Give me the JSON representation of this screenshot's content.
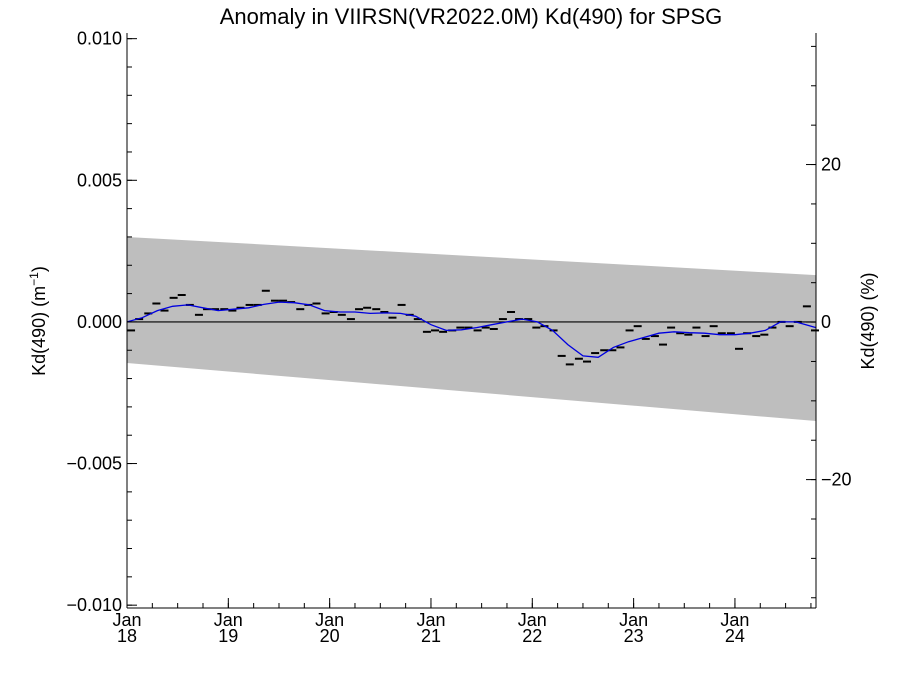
{
  "chart_data": {
    "type": "scatter",
    "title": "Anomaly in VIIRSN(VR2022.0M) Kd(490) for SPSG",
    "ylabel_left": "Kd(490) (m",
    "ylabel_left_sup": "−1",
    "ylabel_left_close": ")",
    "ylabel_right": "Kd(490) (%)",
    "ylim": [
      -0.0101,
      0.0102
    ],
    "y2lim": [
      -36.3,
      36.7
    ],
    "xlim": [
      2018.0,
      2024.8
    ],
    "grid": false,
    "y_ticks": [
      {
        "value": -0.01,
        "label": "−0.010"
      },
      {
        "value": -0.005,
        "label": "−0.005"
      },
      {
        "value": 0.0,
        "label": "0.000"
      },
      {
        "value": 0.005,
        "label": "0.005"
      },
      {
        "value": 0.01,
        "label": "0.010"
      }
    ],
    "y2_ticks": [
      {
        "value": -20,
        "label": "−20"
      },
      {
        "value": 0,
        "label": "0"
      },
      {
        "value": 20,
        "label": "20"
      }
    ],
    "x_ticks": [
      {
        "value": 2018.0,
        "month": "Jan",
        "year": "18"
      },
      {
        "value": 2019.0,
        "month": "Jan",
        "year": "19"
      },
      {
        "value": 2020.0,
        "month": "Jan",
        "year": "20"
      },
      {
        "value": 2021.0,
        "month": "Jan",
        "year": "21"
      },
      {
        "value": 2022.0,
        "month": "Jan",
        "year": "22"
      },
      {
        "value": 2023.0,
        "month": "Jan",
        "year": "23"
      },
      {
        "value": 2024.0,
        "month": "Jan",
        "year": "24"
      }
    ],
    "band": {
      "x": [
        2018.0,
        2024.8
      ],
      "upper": [
        0.003,
        0.00165
      ],
      "lower": [
        -0.00145,
        -0.0035
      ],
      "color": "#bebebe"
    },
    "zero_line": 0.0,
    "series": [
      {
        "kind": "points",
        "color": "#000000",
        "x": [
          2018.04,
          2018.12,
          2018.21,
          2018.29,
          2018.37,
          2018.46,
          2018.54,
          2018.62,
          2018.71,
          2018.79,
          2018.87,
          2018.96,
          2019.04,
          2019.12,
          2019.21,
          2019.29,
          2019.37,
          2019.46,
          2019.54,
          2019.62,
          2019.71,
          2019.79,
          2019.87,
          2019.96,
          2020.04,
          2020.12,
          2020.21,
          2020.29,
          2020.37,
          2020.46,
          2020.54,
          2020.62,
          2020.71,
          2020.79,
          2020.87,
          2020.96,
          2021.04,
          2021.12,
          2021.21,
          2021.29,
          2021.37,
          2021.46,
          2021.54,
          2021.62,
          2021.71,
          2021.79,
          2021.87,
          2021.96,
          2022.04,
          2022.12,
          2022.21,
          2022.29,
          2022.37,
          2022.46,
          2022.54,
          2022.62,
          2022.71,
          2022.79,
          2022.87,
          2022.96,
          2023.04,
          2023.12,
          2023.21,
          2023.29,
          2023.37,
          2023.46,
          2023.54,
          2023.62,
          2023.71,
          2023.79,
          2023.87,
          2023.96,
          2024.04,
          2024.12,
          2024.21,
          2024.29,
          2024.37,
          2024.46,
          2024.54,
          2024.62,
          2024.71,
          2024.79
        ],
        "y": [
          -0.0003,
          0.0001,
          0.0003,
          0.00065,
          0.0004,
          0.00085,
          0.00095,
          0.0006,
          0.00025,
          0.00045,
          0.00045,
          0.00045,
          0.0004,
          0.0005,
          0.0006,
          0.0006,
          0.0011,
          0.00075,
          0.00075,
          0.0007,
          0.00045,
          0.0006,
          0.00065,
          0.0003,
          0.00035,
          0.00025,
          0.0001,
          0.00045,
          0.0005,
          0.00045,
          0.00035,
          0.00015,
          0.0006,
          0.00025,
          0.0001,
          -0.00035,
          -0.0003,
          -0.00035,
          -0.0003,
          -0.0002,
          -0.0002,
          -0.0003,
          -0.0002,
          -0.00025,
          0.0001,
          0.00035,
          0.0001,
          0.0001,
          -0.0002,
          -0.00015,
          -0.0003,
          -0.0012,
          -0.0015,
          -0.0013,
          -0.0014,
          -0.0011,
          -0.001,
          -0.001,
          -0.0009,
          -0.0003,
          -0.00015,
          -0.0006,
          -0.0005,
          -0.0008,
          -0.0002,
          -0.0004,
          -0.00045,
          -0.0002,
          -0.0005,
          -0.00015,
          -0.0004,
          -0.0004,
          -0.00095,
          -0.0004,
          -0.0005,
          -0.00045,
          -0.0002,
          0.0,
          -0.00015,
          0.0,
          0.00055,
          -0.0003
        ]
      },
      {
        "kind": "line",
        "color": "#0000e0",
        "x": [
          2018.0,
          2018.15,
          2018.3,
          2018.45,
          2018.6,
          2018.75,
          2018.9,
          2019.05,
          2019.2,
          2019.35,
          2019.5,
          2019.65,
          2019.8,
          2019.95,
          2020.1,
          2020.25,
          2020.4,
          2020.55,
          2020.7,
          2020.85,
          2021.0,
          2021.15,
          2021.3,
          2021.45,
          2021.6,
          2021.75,
          2021.9,
          2022.05,
          2022.2,
          2022.35,
          2022.5,
          2022.65,
          2022.8,
          2022.95,
          2023.1,
          2023.25,
          2023.4,
          2023.55,
          2023.7,
          2023.85,
          2024.0,
          2024.15,
          2024.3,
          2024.45,
          2024.6,
          2024.7,
          2024.8
        ],
        "y": [
          0.0,
          0.00015,
          0.0004,
          0.00055,
          0.0006,
          0.0005,
          0.0004,
          0.00045,
          0.0005,
          0.00062,
          0.0007,
          0.00068,
          0.0006,
          0.0004,
          0.00035,
          0.00035,
          0.0003,
          0.00032,
          0.0003,
          0.0002,
          -0.0001,
          -0.0003,
          -0.00028,
          -0.0002,
          -0.0001,
          0.0,
          0.0001,
          0.0,
          -0.0003,
          -0.0008,
          -0.0012,
          -0.00125,
          -0.0009,
          -0.0007,
          -0.00055,
          -0.0004,
          -0.00035,
          -0.00038,
          -0.0004,
          -0.00045,
          -0.00045,
          -0.0004,
          -0.0003,
          0.0,
          0.0,
          -0.0001,
          -0.0002
        ]
      }
    ]
  }
}
